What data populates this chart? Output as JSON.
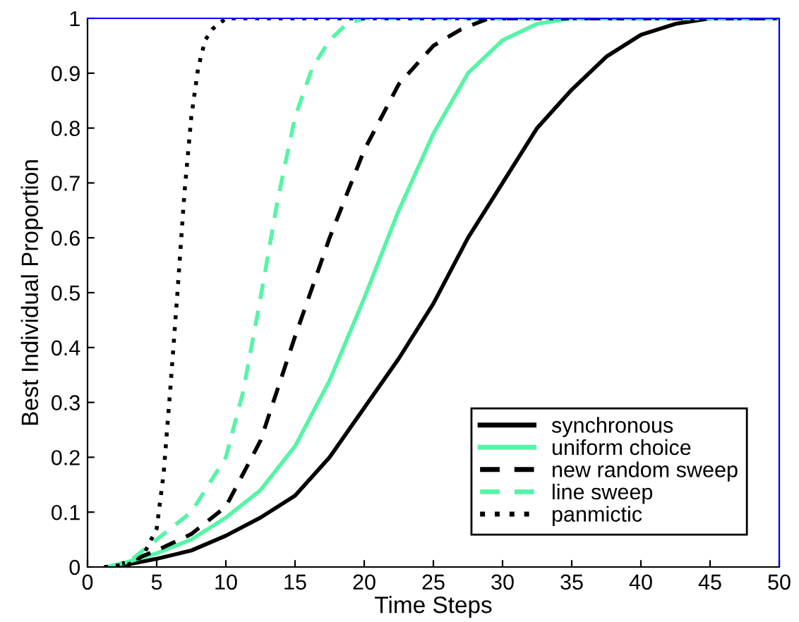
{
  "chart_data": {
    "type": "line",
    "xlabel": "Time Steps",
    "ylabel": "Best Individual Proportion",
    "xlim": [
      0,
      50
    ],
    "ylim": [
      0,
      1
    ],
    "xticks": [
      0,
      5,
      10,
      15,
      20,
      25,
      30,
      35,
      40,
      45,
      50
    ],
    "yticks": [
      0,
      0.1,
      0.2,
      0.3,
      0.4,
      0.5,
      0.6,
      0.7,
      0.8,
      0.9,
      1
    ],
    "grid": false,
    "legend": "bottom right",
    "series": [
      {
        "name": "synchronous",
        "color": "#000000",
        "line_style": "solid",
        "x": [
          2,
          3,
          5,
          7.5,
          10,
          12.5,
          15,
          17.5,
          20,
          22.5,
          25,
          27.5,
          30,
          32.5,
          35,
          37.5,
          40,
          42.5,
          45,
          50
        ],
        "values": [
          0,
          0.005,
          0.015,
          0.03,
          0.057,
          0.09,
          0.13,
          0.2,
          0.29,
          0.38,
          0.48,
          0.6,
          0.7,
          0.8,
          0.87,
          0.93,
          0.97,
          0.99,
          1,
          1
        ]
      },
      {
        "name": "uniform choice",
        "color": "#55f5a5",
        "line_style": "solid",
        "x": [
          1.8,
          3,
          5,
          7.5,
          10,
          12.5,
          15,
          17.5,
          20,
          22.5,
          25,
          27.5,
          30,
          32.5,
          35,
          50
        ],
        "values": [
          0,
          0.01,
          0.025,
          0.05,
          0.09,
          0.14,
          0.22,
          0.34,
          0.49,
          0.65,
          0.79,
          0.9,
          0.96,
          0.99,
          1,
          1
        ]
      },
      {
        "name": "new random sweep",
        "color": "#000000",
        "line_style": "dashed",
        "x": [
          1.6,
          3,
          5,
          7.5,
          10,
          12.5,
          15,
          17.5,
          20,
          22.5,
          25,
          27,
          29,
          50
        ],
        "values": [
          0,
          0.01,
          0.03,
          0.06,
          0.11,
          0.23,
          0.42,
          0.6,
          0.76,
          0.88,
          0.95,
          0.98,
          1,
          1
        ]
      },
      {
        "name": "line sweep",
        "color": "#55f5a5",
        "line_style": "dashed",
        "x": [
          1.4,
          3,
          5,
          7.5,
          10,
          11.25,
          12.5,
          13.75,
          15,
          16.25,
          17.5,
          18.75,
          20,
          50
        ],
        "values": [
          0,
          0.01,
          0.05,
          0.1,
          0.2,
          0.32,
          0.49,
          0.67,
          0.82,
          0.91,
          0.96,
          0.99,
          1,
          1
        ]
      },
      {
        "name": "panmictic",
        "color": "#000000",
        "line_style": "dotted",
        "x": [
          1.2,
          3,
          4,
          5,
          5.5,
          6,
          6.5,
          7,
          7.5,
          8,
          8.5,
          9,
          10,
          50
        ],
        "values": [
          0,
          0.005,
          0.02,
          0.07,
          0.17,
          0.33,
          0.5,
          0.68,
          0.82,
          0.91,
          0.96,
          0.98,
          1,
          1
        ]
      }
    ]
  }
}
